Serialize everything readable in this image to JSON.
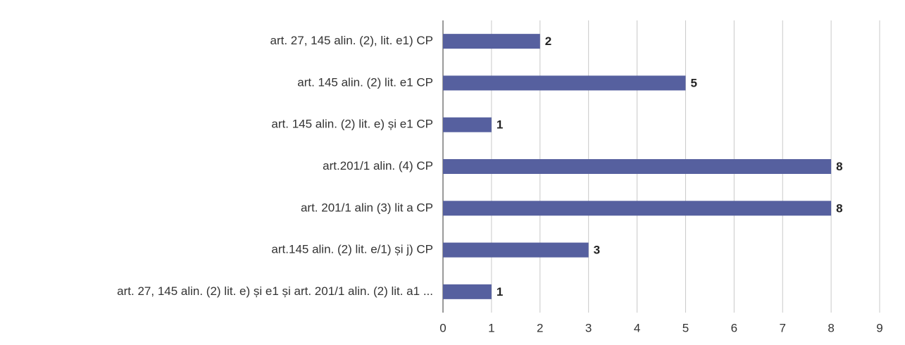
{
  "chart_data": {
    "type": "barh",
    "categories": [
      "art. 27, 145 alin. (2), lit. e1) CP",
      "art. 145 alin. (2) lit. e1 CP",
      "art. 145 alin. (2) lit. e) și e1 CP",
      "art.201/1 alin. (4) CP",
      "art. 201/1 alin (3) lit a CP",
      "art.145 alin. (2) lit. e/1) și j) CP",
      "art. 27, 145 alin. (2) lit. e) și e1 și art. 201/1 alin. (2) lit. a1 ..."
    ],
    "values": [
      2,
      5,
      1,
      8,
      8,
      3,
      1
    ],
    "color": "#56609f",
    "xlim": [
      0,
      9
    ],
    "xticks": [
      0,
      1,
      2,
      3,
      4,
      5,
      6,
      7,
      8,
      9
    ],
    "grid": true
  }
}
